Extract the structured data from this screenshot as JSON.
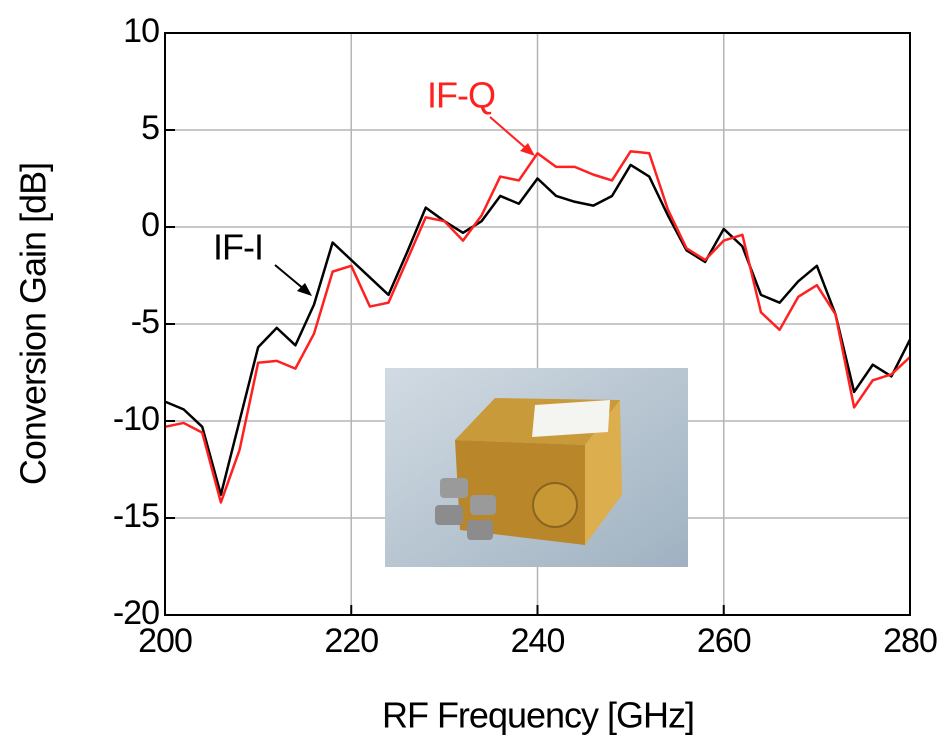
{
  "chart_data": {
    "type": "line",
    "x_label": "RF Frequency [GHz]",
    "y_label": "Conversion Gain [dB]",
    "x": [
      200,
      202,
      204,
      206,
      208,
      210,
      212,
      214,
      216,
      218,
      220,
      222,
      224,
      226,
      228,
      230,
      232,
      234,
      236,
      238,
      240,
      242,
      244,
      246,
      248,
      250,
      252,
      254,
      256,
      258,
      260,
      262,
      264,
      266,
      268,
      270,
      272,
      274,
      276,
      278,
      280
    ],
    "series": [
      {
        "name": "IF-I",
        "color": "#000000",
        "values": [
          -9,
          -9.4,
          -10.3,
          -13.8,
          -10,
          -6.2,
          -5.2,
          -6.1,
          -4,
          -0.8,
          -1.7,
          -2.6,
          -3.5,
          -1.3,
          1,
          0.3,
          -0.3,
          0.3,
          1.6,
          1.2,
          2.5,
          1.6,
          1.3,
          1.1,
          1.6,
          3.2,
          2.6,
          0.6,
          -1.2,
          -1.8,
          -0.1,
          -1,
          -3.5,
          -3.9,
          -2.8,
          -2,
          -4.5,
          -8.5,
          -7.1,
          -7.7,
          -5.8
        ]
      },
      {
        "name": "IF-Q",
        "color": "#ff2020",
        "values": [
          -10.3,
          -10.1,
          -10.6,
          -14.2,
          -11.5,
          -7,
          -6.9,
          -7.3,
          -5.5,
          -2.3,
          -2,
          -4.1,
          -3.9,
          -1.7,
          0.5,
          0.3,
          -0.7,
          0.6,
          2.6,
          2.4,
          3.8,
          3.1,
          3.1,
          2.7,
          2.4,
          3.9,
          3.8,
          0.9,
          -1.1,
          -1.7,
          -0.7,
          -0.4,
          -4.4,
          -5.3,
          -3.6,
          -3,
          -4.5,
          -9.3,
          -7.9,
          -7.6,
          -6.7
        ]
      }
    ],
    "xlim": [
      200,
      280
    ],
    "xticks": [
      200,
      220,
      240,
      260,
      280
    ],
    "ylim": [
      -20,
      10
    ],
    "yticks": [
      -20,
      -15,
      -10,
      -5,
      0,
      5,
      10
    ],
    "grid": true
  }
}
